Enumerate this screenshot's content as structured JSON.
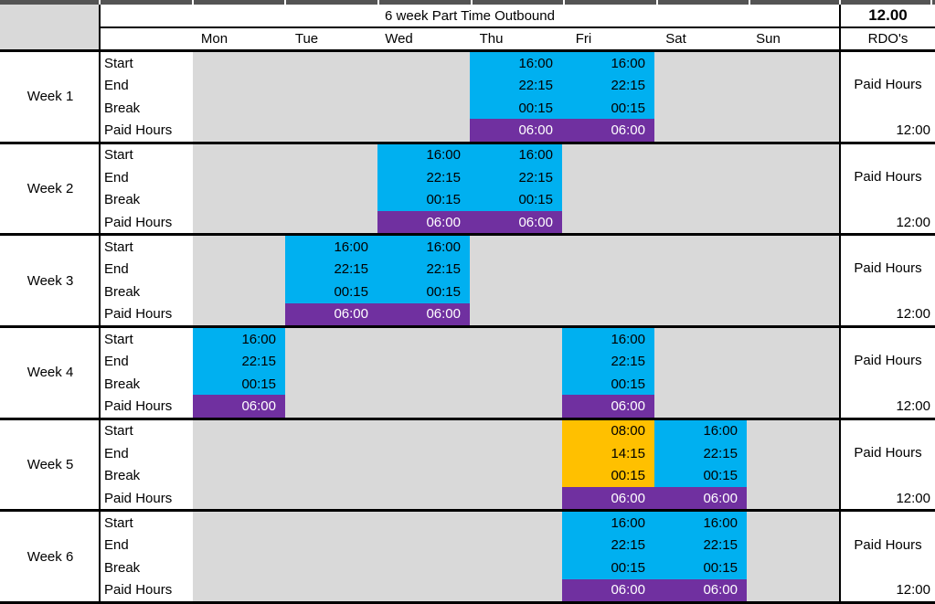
{
  "colors": {
    "shift": "#00B0F0",
    "alt": "#FFC000",
    "paid": "#7030A0",
    "empty": "#D9D9D9",
    "strip": "#545454"
  },
  "header": {
    "title": "6 week Part Time Outbound",
    "total": "12.00",
    "rdo_header": "RDO's",
    "days": [
      "Mon",
      "Tue",
      "Wed",
      "Thu",
      "Fri",
      "Sat",
      "Sun"
    ]
  },
  "row_labels": [
    "Start",
    "End",
    "Break",
    "Paid Hours"
  ],
  "weeks": [
    {
      "label": "Week 1",
      "rdo_label": "Paid Hours",
      "rdo_value": "12:00",
      "days": [
        null,
        null,
        null,
        {
          "color": "shift",
          "start": "16:00",
          "end": "22:15",
          "break": "00:15",
          "paid": "06:00"
        },
        {
          "color": "shift",
          "start": "16:00",
          "end": "22:15",
          "break": "00:15",
          "paid": "06:00"
        },
        null,
        null
      ]
    },
    {
      "label": "Week 2",
      "rdo_label": "Paid Hours",
      "rdo_value": "12:00",
      "days": [
        null,
        null,
        {
          "color": "shift",
          "start": "16:00",
          "end": "22:15",
          "break": "00:15",
          "paid": "06:00"
        },
        {
          "color": "shift",
          "start": "16:00",
          "end": "22:15",
          "break": "00:15",
          "paid": "06:00"
        },
        null,
        null,
        null
      ]
    },
    {
      "label": "Week 3",
      "rdo_label": "Paid Hours",
      "rdo_value": "12:00",
      "days": [
        null,
        {
          "color": "shift",
          "start": "16:00",
          "end": "22:15",
          "break": "00:15",
          "paid": "06:00"
        },
        {
          "color": "shift",
          "start": "16:00",
          "end": "22:15",
          "break": "00:15",
          "paid": "06:00"
        },
        null,
        null,
        null,
        null
      ]
    },
    {
      "label": "Week 4",
      "rdo_label": "Paid Hours",
      "rdo_value": "12:00",
      "days": [
        {
          "color": "shift",
          "start": "16:00",
          "end": "22:15",
          "break": "00:15",
          "paid": "06:00"
        },
        null,
        null,
        null,
        {
          "color": "shift",
          "start": "16:00",
          "end": "22:15",
          "break": "00:15",
          "paid": "06:00"
        },
        null,
        null
      ]
    },
    {
      "label": "Week 5",
      "rdo_label": "Paid Hours",
      "rdo_value": "12:00",
      "days": [
        null,
        null,
        null,
        null,
        {
          "color": "alt",
          "start": "08:00",
          "end": "14:15",
          "break": "00:15",
          "paid": "06:00"
        },
        {
          "color": "shift",
          "start": "16:00",
          "end": "22:15",
          "break": "00:15",
          "paid": "06:00"
        },
        null
      ]
    },
    {
      "label": "Week 6",
      "rdo_label": "Paid Hours",
      "rdo_value": "12:00",
      "days": [
        null,
        null,
        null,
        null,
        {
          "color": "shift",
          "start": "16:00",
          "end": "22:15",
          "break": "00:15",
          "paid": "06:00"
        },
        {
          "color": "shift",
          "start": "16:00",
          "end": "22:15",
          "break": "00:15",
          "paid": "06:00"
        },
        null
      ]
    }
  ]
}
